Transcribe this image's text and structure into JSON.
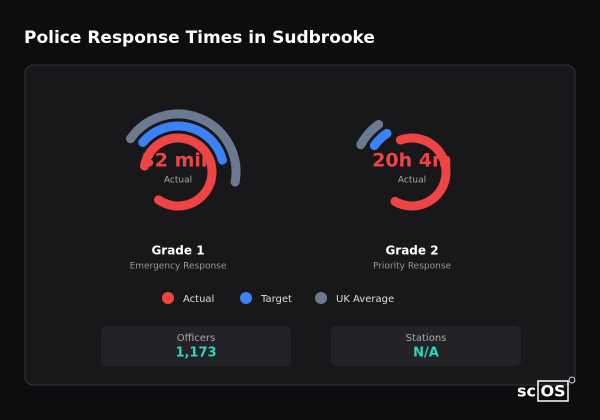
{
  "header": {
    "title": "Police Response Times in Sudbrooke"
  },
  "gauges": [
    {
      "value": "32 min",
      "caption": "Actual",
      "name": "Grade 1",
      "subtitle": "Emergency Response"
    },
    {
      "value": "20h 4m",
      "caption": "Actual",
      "name": "Grade 2",
      "subtitle": "Priority Response"
    }
  ],
  "legend": [
    "Actual",
    "Target",
    "UK Average"
  ],
  "stats": [
    {
      "label": "Officers",
      "value": "1,173"
    },
    {
      "label": "Stations",
      "value": "N/A"
    }
  ],
  "logo": {
    "prefix": "sc",
    "boxed": "OS"
  }
}
